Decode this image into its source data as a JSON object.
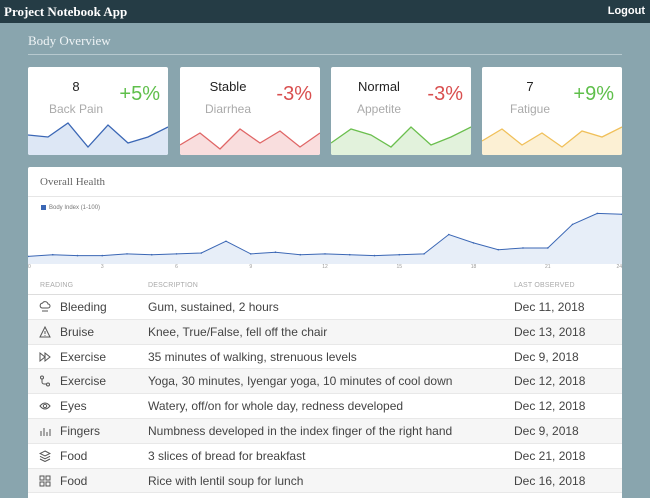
{
  "app": {
    "title": "Project Notebook App",
    "logout_label": "Logout"
  },
  "section": {
    "title": "Body Overview"
  },
  "stats": [
    {
      "value": "8",
      "label": "Back Pain",
      "change": "+5%",
      "trend": "up",
      "color": "#3b67b5",
      "fill": "#dde7f5",
      "spark": [
        20,
        18,
        32,
        8,
        30,
        12,
        18,
        28
      ]
    },
    {
      "value": "Stable",
      "label": "Diarrhea",
      "change": "-3%",
      "trend": "down",
      "color": "#e06666",
      "fill": "#f9dede",
      "spark": [
        10,
        22,
        6,
        26,
        12,
        24,
        8,
        22
      ]
    },
    {
      "value": "Normal",
      "label": "Appetite",
      "change": "-3%",
      "trend": "down",
      "color": "#6bbf4e",
      "fill": "#e2f2dc",
      "spark": [
        12,
        26,
        20,
        8,
        28,
        10,
        18,
        28
      ]
    },
    {
      "value": "7",
      "label": "Fatigue",
      "change": "+9%",
      "trend": "up",
      "color": "#f0c05a",
      "fill": "#fcf0d4",
      "spark": [
        14,
        26,
        10,
        22,
        8,
        24,
        18,
        28
      ]
    }
  ],
  "overall": {
    "title": "Overall Health",
    "columns": {
      "reading": "READING",
      "description": "DESCRIPTION",
      "last_observed": "LAST OBSERVED"
    },
    "rows": [
      {
        "icon": "cloud-rain-icon",
        "reading": "Bleeding",
        "description": "Gum, sustained, 2 hours",
        "date": "Dec 11, 2018"
      },
      {
        "icon": "warning-triangle-icon",
        "reading": "Bruise",
        "description": "Knee, True/False, fell off the chair",
        "date": "Dec 13, 2018"
      },
      {
        "icon": "fast-forward-icon",
        "reading": "Exercise",
        "description": "35 minutes of walking, strenuous levels",
        "date": "Dec 9, 2018"
      },
      {
        "icon": "route-icon",
        "reading": "Exercise",
        "description": "Yoga, 30 minutes, Iyengar yoga, 10 minutes of cool down",
        "date": "Dec 12, 2018"
      },
      {
        "icon": "eye-icon",
        "reading": "Eyes",
        "description": "Watery, off/on for whole day, redness developed",
        "date": "Dec 12, 2018"
      },
      {
        "icon": "bar-chart-icon",
        "reading": "Fingers",
        "description": "Numbness developed in the index finger of the right hand",
        "date": "Dec 9, 2018"
      },
      {
        "icon": "layers-icon",
        "reading": "Food",
        "description": "3 slices of bread for breakfast",
        "date": "Dec 21, 2018"
      },
      {
        "icon": "grid-icon",
        "reading": "Food",
        "description": "Rice with lentil soup for lunch",
        "date": "Dec 16, 2018"
      }
    ]
  },
  "chart_data": {
    "type": "area",
    "series": [
      {
        "name": "Body Index (1-100)",
        "values": [
          9,
          11,
          10,
          10,
          12,
          11,
          12,
          13,
          27,
          12,
          14,
          11,
          12,
          11,
          10,
          11,
          12,
          35,
          25,
          17,
          19,
          19,
          47,
          60,
          59
        ]
      }
    ],
    "x_ticks": [
      "0",
      "3",
      "6",
      "9",
      "12",
      "15",
      "18",
      "21",
      "24"
    ],
    "xlim": [
      0,
      24
    ],
    "ylim": [
      0,
      70
    ],
    "grid": false,
    "legend_position": "top-left",
    "color": "#3b67b5",
    "fill": "#e7eef8"
  }
}
